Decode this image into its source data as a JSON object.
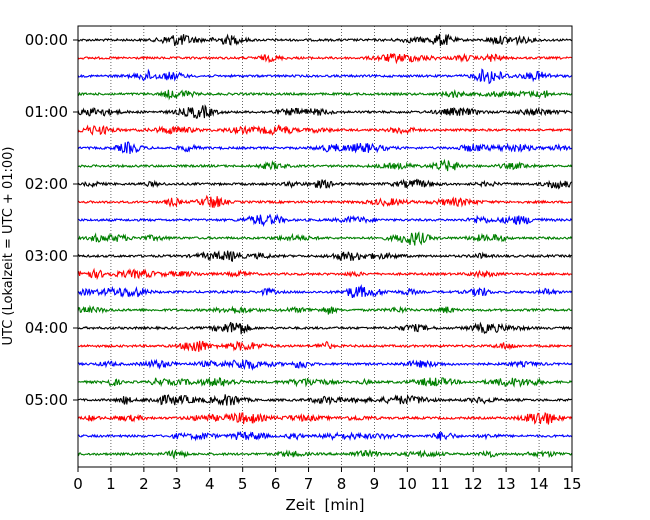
{
  "chart_data": {
    "type": "line",
    "title": "",
    "xlabel": "Zeit  [min]",
    "ylabel": "UTC (Lokalzeit = UTC + 01:00)",
    "xlim": [
      0,
      15
    ],
    "x_ticks": [
      "0",
      "1",
      "2",
      "3",
      "4",
      "5",
      "6",
      "7",
      "8",
      "9",
      "10",
      "11",
      "12",
      "13",
      "14",
      "15"
    ],
    "y_ticks": [
      "00:00",
      "01:00",
      "02:00",
      "03:00",
      "04:00",
      "05:00"
    ],
    "grid": "vertical dotted at each minute",
    "trace_interval_minutes": 15,
    "trace_count": 24,
    "trace_color_cycle": [
      "#000000",
      "#ff0000",
      "#0000ff",
      "#008000"
    ],
    "traces": [
      {
        "start": "00:00",
        "color": "#000000"
      },
      {
        "start": "00:15",
        "color": "#ff0000"
      },
      {
        "start": "00:30",
        "color": "#0000ff"
      },
      {
        "start": "00:45",
        "color": "#008000"
      },
      {
        "start": "01:00",
        "color": "#000000"
      },
      {
        "start": "01:15",
        "color": "#ff0000"
      },
      {
        "start": "01:30",
        "color": "#0000ff"
      },
      {
        "start": "01:45",
        "color": "#008000"
      },
      {
        "start": "02:00",
        "color": "#000000"
      },
      {
        "start": "02:15",
        "color": "#ff0000"
      },
      {
        "start": "02:30",
        "color": "#0000ff"
      },
      {
        "start": "02:45",
        "color": "#008000"
      },
      {
        "start": "03:00",
        "color": "#000000"
      },
      {
        "start": "03:15",
        "color": "#ff0000"
      },
      {
        "start": "03:30",
        "color": "#0000ff"
      },
      {
        "start": "03:45",
        "color": "#008000"
      },
      {
        "start": "04:00",
        "color": "#000000"
      },
      {
        "start": "04:15",
        "color": "#ff0000"
      },
      {
        "start": "04:30",
        "color": "#0000ff"
      },
      {
        "start": "04:45",
        "color": "#008000"
      },
      {
        "start": "05:00",
        "color": "#000000"
      },
      {
        "start": "05:15",
        "color": "#ff0000"
      },
      {
        "start": "05:30",
        "color": "#0000ff"
      },
      {
        "start": "05:45",
        "color": "#008000"
      }
    ]
  }
}
